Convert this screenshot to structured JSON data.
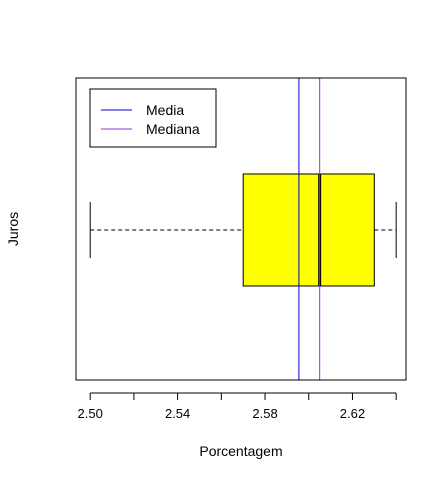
{
  "chart_data": {
    "type": "boxplot",
    "orientation": "horizontal",
    "title": "",
    "xlabel": "Porcentagem",
    "ylabel": "Juros",
    "xlim": [
      2.4935,
      2.6445
    ],
    "x_ticks": [
      2.5,
      2.54,
      2.58,
      2.62
    ],
    "x_tick_labels": [
      "2.50",
      "2.54",
      "2.58",
      "2.62"
    ],
    "box": {
      "whisker_low": 2.5,
      "q1": 2.57,
      "median": 2.605,
      "q3": 2.63,
      "whisker_high": 2.64,
      "fill": "#ffff00"
    },
    "reference_lines": [
      {
        "name": "Media",
        "value": 2.5955,
        "color": "#0000cc"
      },
      {
        "name": "Mediana",
        "value": 2.605,
        "color": "#9933cc"
      }
    ],
    "legend": {
      "placement": "top-left",
      "items": [
        {
          "label": "Media",
          "color": "#0000cc"
        },
        {
          "label": "Mediana",
          "color": "#9933cc"
        }
      ]
    }
  }
}
